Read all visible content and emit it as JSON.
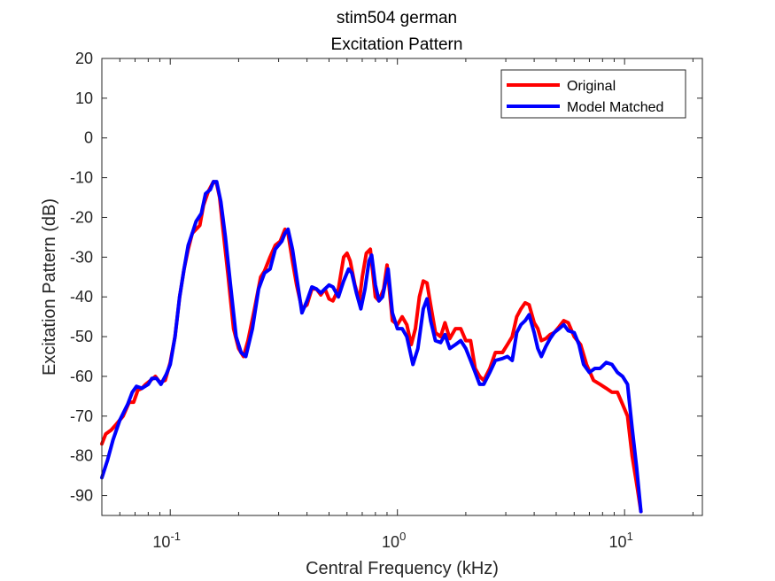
{
  "chart_data": {
    "type": "line",
    "title": "stim504 german",
    "subtitle": "Excitation Pattern",
    "xlabel": "Central Frequency (kHz)",
    "ylabel": "Excitation Pattern (dB)",
    "xscale": "log",
    "xlim": [
      0.05,
      22
    ],
    "ylim": [
      -95,
      20
    ],
    "xticks": [
      {
        "value": 0.1,
        "base": "10",
        "exp": "-1"
      },
      {
        "value": 1,
        "base": "10",
        "exp": "0"
      },
      {
        "value": 10,
        "base": "10",
        "exp": "1"
      }
    ],
    "yticks": [
      "20",
      "10",
      "0",
      "-10",
      "-20",
      "-30",
      "-40",
      "-50",
      "-60",
      "-70",
      "-80",
      "-90"
    ],
    "grid": false,
    "legend_position": "top-right",
    "series": [
      {
        "name": "Original",
        "color": "#ff0000",
        "points": [
          [
            0.05,
            -77
          ],
          [
            0.052,
            -74.5
          ],
          [
            0.055,
            -73.5
          ],
          [
            0.058,
            -72
          ],
          [
            0.062,
            -70
          ],
          [
            0.066,
            -66.5
          ],
          [
            0.069,
            -66.5
          ],
          [
            0.072,
            -63.5
          ],
          [
            0.075,
            -63
          ],
          [
            0.078,
            -62
          ],
          [
            0.082,
            -61
          ],
          [
            0.086,
            -60
          ],
          [
            0.09,
            -61.5
          ],
          [
            0.095,
            -61
          ],
          [
            0.1,
            -56.5
          ],
          [
            0.105,
            -50
          ],
          [
            0.11,
            -40
          ],
          [
            0.115,
            -33
          ],
          [
            0.12,
            -28
          ],
          [
            0.125,
            -24
          ],
          [
            0.13,
            -23
          ],
          [
            0.135,
            -22
          ],
          [
            0.14,
            -17
          ],
          [
            0.147,
            -13.5
          ],
          [
            0.155,
            -11
          ],
          [
            0.16,
            -11.5
          ],
          [
            0.165,
            -15
          ],
          [
            0.17,
            -22
          ],
          [
            0.18,
            -35
          ],
          [
            0.19,
            -48
          ],
          [
            0.2,
            -53
          ],
          [
            0.21,
            -55
          ],
          [
            0.22,
            -51
          ],
          [
            0.235,
            -43
          ],
          [
            0.25,
            -35
          ],
          [
            0.26,
            -33.5
          ],
          [
            0.275,
            -30
          ],
          [
            0.29,
            -27
          ],
          [
            0.305,
            -26
          ],
          [
            0.32,
            -23
          ],
          [
            0.33,
            -24
          ],
          [
            0.345,
            -31
          ],
          [
            0.36,
            -37
          ],
          [
            0.38,
            -43
          ],
          [
            0.4,
            -42
          ],
          [
            0.42,
            -38
          ],
          [
            0.44,
            -38
          ],
          [
            0.46,
            -39.5
          ],
          [
            0.48,
            -38
          ],
          [
            0.5,
            -40.5
          ],
          [
            0.52,
            -41
          ],
          [
            0.55,
            -38
          ],
          [
            0.58,
            -30
          ],
          [
            0.6,
            -29
          ],
          [
            0.62,
            -31
          ],
          [
            0.65,
            -37
          ],
          [
            0.68,
            -41
          ],
          [
            0.7,
            -35
          ],
          [
            0.73,
            -29
          ],
          [
            0.76,
            -28
          ],
          [
            0.8,
            -40
          ],
          [
            0.83,
            -41
          ],
          [
            0.87,
            -38
          ],
          [
            0.9,
            -32
          ],
          [
            0.95,
            -46
          ],
          [
            1.0,
            -47
          ],
          [
            1.05,
            -45
          ],
          [
            1.1,
            -47
          ],
          [
            1.15,
            -52
          ],
          [
            1.2,
            -48
          ],
          [
            1.25,
            -40
          ],
          [
            1.3,
            -36
          ],
          [
            1.35,
            -36.5
          ],
          [
            1.4,
            -42
          ],
          [
            1.47,
            -49
          ],
          [
            1.55,
            -50
          ],
          [
            1.62,
            -46.5
          ],
          [
            1.7,
            -50.5
          ],
          [
            1.8,
            -48
          ],
          [
            1.9,
            -48
          ],
          [
            2.0,
            -51
          ],
          [
            2.1,
            -51
          ],
          [
            2.2,
            -58
          ],
          [
            2.3,
            -60
          ],
          [
            2.4,
            -61
          ],
          [
            2.55,
            -58
          ],
          [
            2.7,
            -54
          ],
          [
            2.9,
            -54
          ],
          [
            3.05,
            -52
          ],
          [
            3.2,
            -50
          ],
          [
            3.35,
            -45
          ],
          [
            3.5,
            -43
          ],
          [
            3.65,
            -41.5
          ],
          [
            3.8,
            -42
          ],
          [
            4.0,
            -46.5
          ],
          [
            4.15,
            -48
          ],
          [
            4.3,
            -51
          ],
          [
            4.5,
            -50.5
          ],
          [
            4.7,
            -49.5
          ],
          [
            4.9,
            -49
          ],
          [
            5.15,
            -47.5
          ],
          [
            5.4,
            -46
          ],
          [
            5.65,
            -46.5
          ],
          [
            6.0,
            -50
          ],
          [
            6.4,
            -52
          ],
          [
            6.8,
            -57
          ],
          [
            7.3,
            -61
          ],
          [
            7.8,
            -62
          ],
          [
            8.3,
            -63
          ],
          [
            8.8,
            -64
          ],
          [
            9.3,
            -64
          ],
          [
            9.8,
            -67
          ],
          [
            10.3,
            -70
          ],
          [
            10.8,
            -80
          ],
          [
            11.3,
            -87
          ],
          [
            11.8,
            -94
          ]
        ]
      },
      {
        "name": "Model Matched",
        "color": "#0000ff",
        "points": [
          [
            0.05,
            -85.5
          ],
          [
            0.053,
            -81
          ],
          [
            0.056,
            -76
          ],
          [
            0.06,
            -71
          ],
          [
            0.065,
            -67
          ],
          [
            0.068,
            -64
          ],
          [
            0.071,
            -62.5
          ],
          [
            0.075,
            -63
          ],
          [
            0.08,
            -62
          ],
          [
            0.083,
            -60.5
          ],
          [
            0.087,
            -60.5
          ],
          [
            0.091,
            -62
          ],
          [
            0.096,
            -59.5
          ],
          [
            0.1,
            -57
          ],
          [
            0.105,
            -50
          ],
          [
            0.11,
            -40
          ],
          [
            0.115,
            -33
          ],
          [
            0.12,
            -27
          ],
          [
            0.125,
            -24
          ],
          [
            0.13,
            -21
          ],
          [
            0.137,
            -19
          ],
          [
            0.143,
            -14
          ],
          [
            0.15,
            -13
          ],
          [
            0.155,
            -11
          ],
          [
            0.16,
            -11
          ],
          [
            0.167,
            -16
          ],
          [
            0.175,
            -25
          ],
          [
            0.185,
            -38
          ],
          [
            0.195,
            -50
          ],
          [
            0.205,
            -54
          ],
          [
            0.215,
            -55
          ],
          [
            0.23,
            -48
          ],
          [
            0.245,
            -38
          ],
          [
            0.26,
            -34
          ],
          [
            0.275,
            -33
          ],
          [
            0.29,
            -28
          ],
          [
            0.31,
            -26
          ],
          [
            0.32,
            -24
          ],
          [
            0.33,
            -23
          ],
          [
            0.345,
            -28
          ],
          [
            0.36,
            -35
          ],
          [
            0.38,
            -44
          ],
          [
            0.4,
            -41
          ],
          [
            0.42,
            -37.5
          ],
          [
            0.44,
            -38
          ],
          [
            0.46,
            -39
          ],
          [
            0.48,
            -38
          ],
          [
            0.5,
            -37
          ],
          [
            0.52,
            -37.5
          ],
          [
            0.55,
            -40
          ],
          [
            0.58,
            -36
          ],
          [
            0.61,
            -33
          ],
          [
            0.63,
            -34
          ],
          [
            0.66,
            -39
          ],
          [
            0.69,
            -43
          ],
          [
            0.72,
            -38
          ],
          [
            0.75,
            -31
          ],
          [
            0.77,
            -29.5
          ],
          [
            0.8,
            -37
          ],
          [
            0.83,
            -41
          ],
          [
            0.86,
            -40
          ],
          [
            0.91,
            -33
          ],
          [
            0.95,
            -44
          ],
          [
            1.0,
            -48
          ],
          [
            1.05,
            -48
          ],
          [
            1.1,
            -50
          ],
          [
            1.17,
            -57
          ],
          [
            1.23,
            -53
          ],
          [
            1.3,
            -43
          ],
          [
            1.35,
            -40.5
          ],
          [
            1.4,
            -46
          ],
          [
            1.47,
            -51
          ],
          [
            1.55,
            -51.5
          ],
          [
            1.62,
            -49.5
          ],
          [
            1.7,
            -53
          ],
          [
            1.8,
            -52
          ],
          [
            1.9,
            -51
          ],
          [
            2.0,
            -53
          ],
          [
            2.1,
            -56
          ],
          [
            2.2,
            -59
          ],
          [
            2.3,
            -62
          ],
          [
            2.4,
            -62
          ],
          [
            2.55,
            -59
          ],
          [
            2.7,
            -56
          ],
          [
            2.9,
            -55.5
          ],
          [
            3.05,
            -55
          ],
          [
            3.2,
            -56
          ],
          [
            3.35,
            -49
          ],
          [
            3.5,
            -47
          ],
          [
            3.65,
            -46
          ],
          [
            3.8,
            -44.5
          ],
          [
            4.0,
            -49
          ],
          [
            4.15,
            -53
          ],
          [
            4.3,
            -55
          ],
          [
            4.5,
            -52.5
          ],
          [
            4.7,
            -50.5
          ],
          [
            4.9,
            -49
          ],
          [
            5.15,
            -48
          ],
          [
            5.4,
            -47
          ],
          [
            5.65,
            -48.5
          ],
          [
            6.0,
            -49
          ],
          [
            6.3,
            -52
          ],
          [
            6.6,
            -57
          ],
          [
            7.0,
            -59
          ],
          [
            7.4,
            -58
          ],
          [
            7.8,
            -58
          ],
          [
            8.3,
            -56.5
          ],
          [
            8.8,
            -57
          ],
          [
            9.3,
            -59
          ],
          [
            9.8,
            -60
          ],
          [
            10.3,
            -62
          ],
          [
            10.8,
            -73
          ],
          [
            11.3,
            -83
          ],
          [
            11.8,
            -94
          ]
        ]
      }
    ]
  }
}
